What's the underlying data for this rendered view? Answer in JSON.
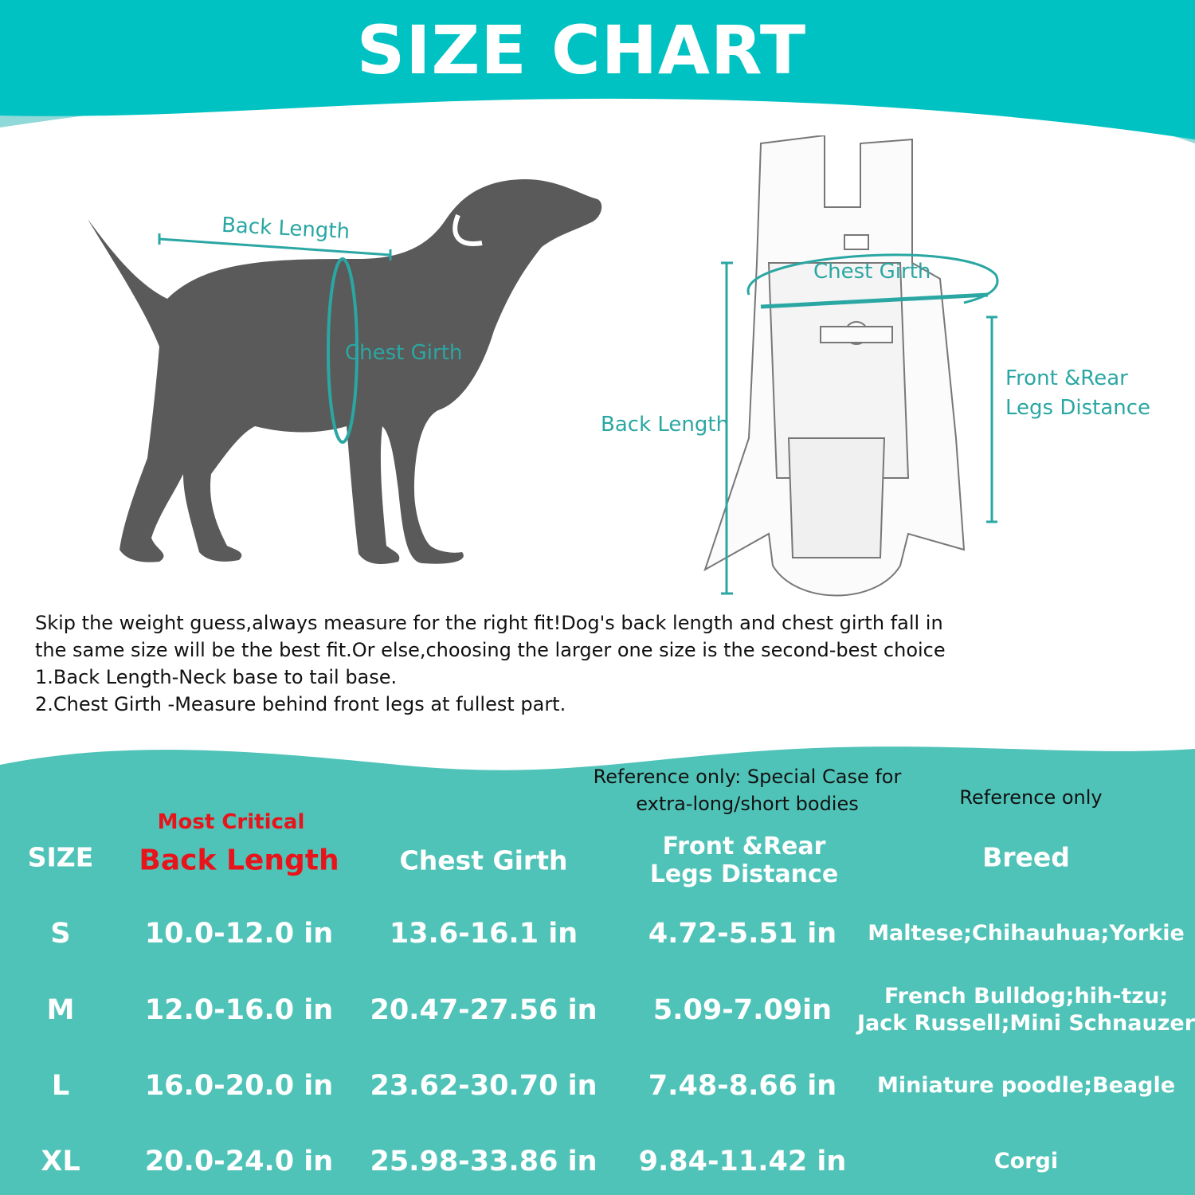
{
  "title": "SIZE CHART",
  "colors": {
    "header_teal": "#00C2C2",
    "table_teal": "#50C3B8",
    "annotation_teal": "#2AA7A3",
    "critical_red": "#E8141B",
    "dog_gray": "#5A5A5A"
  },
  "dog_diagram": {
    "back_length": "Back Length",
    "chest_girth": "Chest Girth"
  },
  "carrier_diagram": {
    "chest_girth": "Chest Girth",
    "back_length": "Back Length",
    "legs_distance_line1": "Front &Rear",
    "legs_distance_line2": "Legs Distance"
  },
  "instructions": [
    "Skip the weight guess,always measure for the right fit!Dog's back length and chest girth fall in",
    "the same size will be the best fit.Or else,choosing the larger one size is the second-best choice",
    "1.Back Length-Neck base to tail base.",
    "2.Chest Girth -Measure behind front legs at fullest part."
  ],
  "table": {
    "notes": {
      "most_critical": "Most Critical",
      "legs_note_line1": "Reference only: Special Case for",
      "legs_note_line2": "extra-long/short bodies",
      "breed_note": "Reference only"
    },
    "headers": {
      "size": "SIZE",
      "back_length": "Back Length",
      "chest_girth": "Chest Girth",
      "legs_line1": "Front &Rear",
      "legs_line2": "Legs Distance",
      "breed": "Breed"
    },
    "rows": [
      {
        "size": "S",
        "back_length": "10.0-12.0 in",
        "chest_girth": "13.6-16.1 in",
        "legs": "4.72-5.51 in",
        "breed_line1": "Maltese;Chihauhua;Yorkie",
        "breed_line2": ""
      },
      {
        "size": "M",
        "back_length": "12.0-16.0 in",
        "chest_girth": "20.47-27.56 in",
        "legs": "5.09-7.09in",
        "breed_line1": "French Bulldog;hih-tzu;",
        "breed_line2": "Jack Russell;Mini Schnauzer"
      },
      {
        "size": "L",
        "back_length": "16.0-20.0 in",
        "chest_girth": "23.62-30.70 in",
        "legs": "7.48-8.66 in",
        "breed_line1": "Miniature poodle;Beagle",
        "breed_line2": ""
      },
      {
        "size": "XL",
        "back_length": "20.0-24.0 in",
        "chest_girth": "25.98-33.86 in",
        "legs": "9.84-11.42 in",
        "breed_line1": "Corgi",
        "breed_line2": ""
      }
    ]
  }
}
